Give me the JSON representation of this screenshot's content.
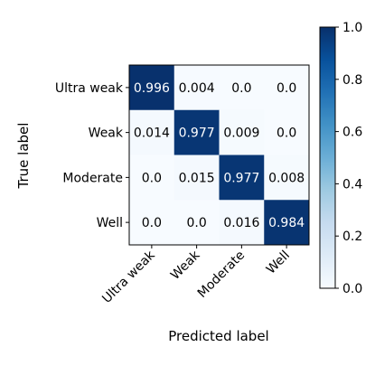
{
  "chart_data": {
    "type": "heatmap",
    "title": "",
    "xlabel": "Predicted label",
    "ylabel": "True label",
    "categories": [
      "Ultra weak",
      "Weak",
      "Moderate",
      "Well"
    ],
    "values": [
      [
        0.996,
        0.004,
        0.0,
        0.0
      ],
      [
        0.014,
        0.977,
        0.009,
        0.0
      ],
      [
        0.0,
        0.015,
        0.977,
        0.008
      ],
      [
        0.0,
        0.0,
        0.016,
        0.984
      ]
    ],
    "cell_labels": [
      [
        "0.996",
        "0.004",
        "0.0",
        "0.0"
      ],
      [
        "0.014",
        "0.977",
        "0.009",
        "0.0"
      ],
      [
        "0.0",
        "0.015",
        "0.977",
        "0.008"
      ],
      [
        "0.0",
        "0.0",
        "0.016",
        "0.984"
      ]
    ],
    "colorbar": {
      "range": [
        0.0,
        1.0
      ],
      "ticks": [
        0.0,
        0.2,
        0.4,
        0.6,
        0.8,
        1.0
      ],
      "tick_labels": [
        "0.0",
        "0.2",
        "0.4",
        "0.6",
        "0.8",
        "1.0"
      ]
    },
    "colormap": "Blues",
    "colors": {
      "low": "#f7fbff",
      "high": "#08306b"
    }
  }
}
